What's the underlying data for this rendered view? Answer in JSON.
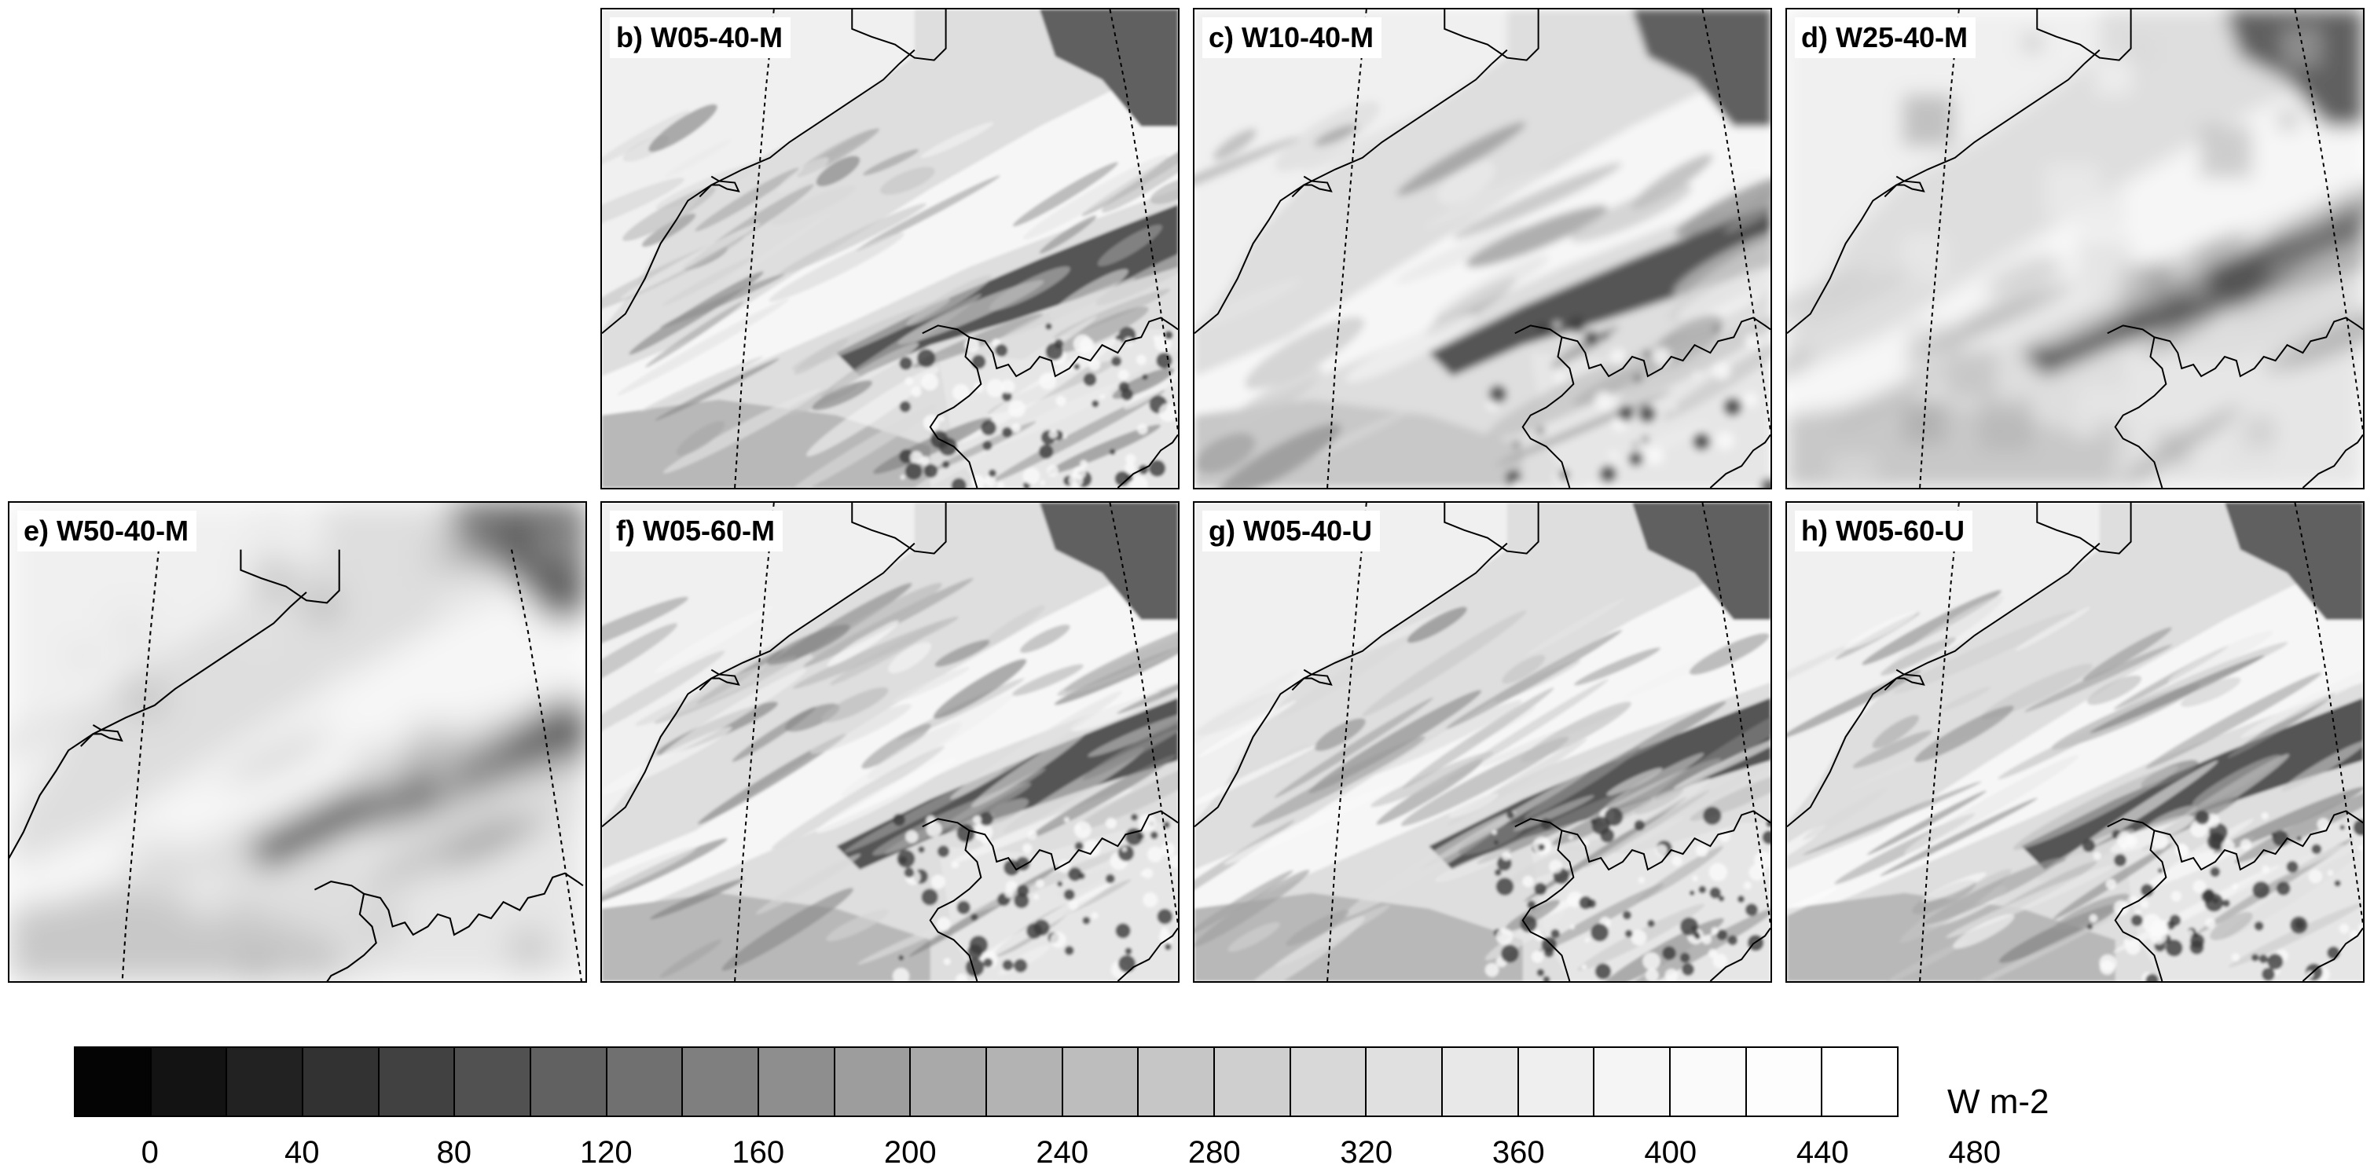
{
  "panels": [
    {
      "id": "b",
      "label": "b) W05-40-M",
      "style": "fine"
    },
    {
      "id": "c",
      "label": "c) W10-40-M",
      "style": "medium"
    },
    {
      "id": "d",
      "label": "d) W25-40-M",
      "style": "coarse"
    },
    {
      "id": "e",
      "label": "e) W50-40-M",
      "style": "verycoarse"
    },
    {
      "id": "f",
      "label": "f) W05-60-M",
      "style": "fine"
    },
    {
      "id": "g",
      "label": "g) W05-40-U",
      "style": "fine"
    },
    {
      "id": "h",
      "label": "h) W05-60-U",
      "style": "fine"
    }
  ],
  "colorbar": {
    "units": "W m-2",
    "tick_labels": [
      "0",
      "40",
      "80",
      "120",
      "160",
      "200",
      "240",
      "280",
      "320",
      "360",
      "400",
      "440",
      "480"
    ],
    "colors": [
      "#040404",
      "#131313",
      "#222222",
      "#323232",
      "#414141",
      "#515151",
      "#616161",
      "#707070",
      "#7f7f7f",
      "#8e8e8e",
      "#9d9d9d",
      "#a9a9a9",
      "#b3b3b3",
      "#bdbdbd",
      "#c6c6c6",
      "#cfcfcf",
      "#d8d8d8",
      "#e0e0e0",
      "#e8e8e8",
      "#efefef",
      "#f5f5f5",
      "#fafafa",
      "#fdfdfd",
      "#ffffff"
    ]
  }
}
